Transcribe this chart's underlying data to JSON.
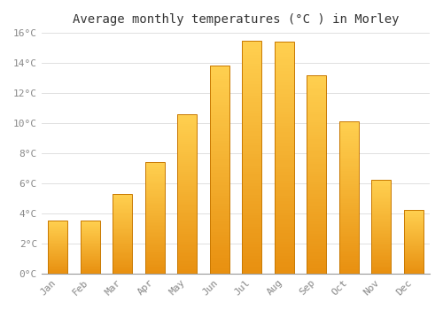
{
  "title": "Average monthly temperatures (°C ) in Morley",
  "months": [
    "Jan",
    "Feb",
    "Mar",
    "Apr",
    "May",
    "Jun",
    "Jul",
    "Aug",
    "Sep",
    "Oct",
    "Nov",
    "Dec"
  ],
  "temperatures": [
    3.5,
    3.5,
    5.3,
    7.4,
    10.6,
    13.8,
    15.5,
    15.4,
    13.2,
    10.1,
    6.2,
    4.2
  ],
  "bar_color_top": "#FFD050",
  "bar_color_bottom": "#E89010",
  "bar_edge_color": "#C87800",
  "ylim": [
    0,
    16
  ],
  "yticks": [
    0,
    2,
    4,
    6,
    8,
    10,
    12,
    14,
    16
  ],
  "ytick_labels": [
    "0°C",
    "2°C",
    "4°C",
    "6°C",
    "8°C",
    "10°C",
    "12°C",
    "14°C",
    "16°C"
  ],
  "background_color": "#FFFFFF",
  "grid_color": "#E0E0E0",
  "title_fontsize": 10,
  "tick_fontsize": 8,
  "tick_color": "#888888",
  "bar_width": 0.6
}
